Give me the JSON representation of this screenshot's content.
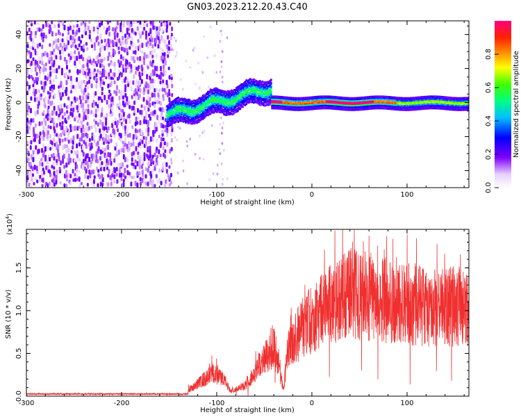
{
  "title": "GN03.2023.212.20.43.C40",
  "chart_data": [
    {
      "type": "heatmap",
      "xlabel": "Height of straight line (km)",
      "ylabel": "Frequency (Hz)",
      "xlim": [
        -300,
        165
      ],
      "ylim": [
        -50,
        48
      ],
      "x_ticks": [
        -300,
        -200,
        -100,
        0,
        100
      ],
      "y_ticks": [
        -40,
        -20,
        0,
        20,
        40
      ],
      "colorbar": {
        "label": "Normalized spectral amplitude",
        "range": [
          0,
          1
        ],
        "ticks": [
          "0.0",
          "0.2",
          "0.4",
          "0.6",
          "0.8"
        ],
        "colors": [
          "#ffffff",
          "#8000ff",
          "#0000ff",
          "#00ffff",
          "#00ff00",
          "#ffff00",
          "#ff8000",
          "#ff0000",
          "#ff0080"
        ]
      },
      "regions": [
        {
          "x": [
            -300,
            -150
          ],
          "freq": [
            -50,
            48
          ],
          "amplitude": 0.1,
          "texture": "scattered noise"
        },
        {
          "x": [
            -150,
            -40
          ],
          "freq_center_start": -8,
          "freq_center_end": 10,
          "amplitude": 0.4,
          "texture": "rising band"
        },
        {
          "x": [
            -40,
            165
          ],
          "freq_center": 0,
          "amplitude": 0.9,
          "texture": "narrow line near 0 Hz"
        }
      ]
    },
    {
      "type": "line",
      "xlabel": "Height of straight line (km)",
      "ylabel": "SNR (10 * v/v)",
      "y_multiplier": "(x10",
      "y_multiplier_exp": "4",
      "y_multiplier_close": ")",
      "xlim": [
        -300,
        165
      ],
      "ylim": [
        0,
        1.95
      ],
      "x_ticks": [
        -300,
        -200,
        -100,
        0,
        100
      ],
      "y_ticks": [
        "0.0",
        "0.5",
        "1.0",
        "1.5"
      ],
      "color": "#f03030",
      "envelope": [
        {
          "x": -300,
          "y": 0.02
        },
        {
          "x": -200,
          "y": 0.02
        },
        {
          "x": -140,
          "y": 0.03
        },
        {
          "x": -125,
          "y": 0.1
        },
        {
          "x": -105,
          "y": 0.27
        },
        {
          "x": -95,
          "y": 0.22
        },
        {
          "x": -85,
          "y": 0.06
        },
        {
          "x": -70,
          "y": 0.12
        },
        {
          "x": -50,
          "y": 0.45
        },
        {
          "x": -40,
          "y": 0.6
        },
        {
          "x": -30,
          "y": 0.08
        },
        {
          "x": -25,
          "y": 0.55
        },
        {
          "x": -10,
          "y": 0.8
        },
        {
          "x": 10,
          "y": 1.0
        },
        {
          "x": 40,
          "y": 1.2
        },
        {
          "x": 80,
          "y": 1.12
        },
        {
          "x": 120,
          "y": 1.05
        },
        {
          "x": 165,
          "y": 1.05
        }
      ]
    }
  ]
}
